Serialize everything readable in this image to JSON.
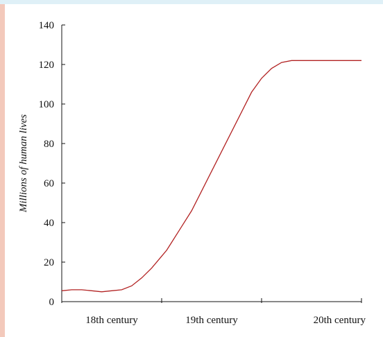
{
  "chart_data": {
    "type": "line",
    "title": "",
    "xlabel": "",
    "ylabel": "Millions of human lives",
    "ylim": [
      0,
      140
    ],
    "yticks": [
      0,
      20,
      40,
      60,
      80,
      100,
      120,
      140
    ],
    "x_categories": [
      "18th century",
      "19th century",
      "20th century"
    ],
    "xlim": [
      1700,
      2000
    ],
    "grid": false,
    "legend": "none",
    "series": [
      {
        "color": "#b22222",
        "x": [
          1700,
          1710,
          1720,
          1730,
          1740,
          1750,
          1760,
          1770,
          1780,
          1790,
          1800,
          1805,
          1810,
          1820,
          1830,
          1840,
          1850,
          1860,
          1870,
          1880,
          1890,
          1900,
          1910,
          1920,
          1930,
          1940,
          1950,
          1960,
          1970,
          1980,
          1990,
          2000
        ],
        "y": [
          5.5,
          6,
          6,
          5.5,
          5,
          5.5,
          6,
          8,
          12,
          17,
          23,
          26,
          30,
          38,
          46,
          56,
          66,
          76,
          86,
          96,
          106,
          113,
          118,
          121,
          122,
          122,
          122,
          122,
          122,
          122,
          122,
          122
        ]
      }
    ]
  }
}
